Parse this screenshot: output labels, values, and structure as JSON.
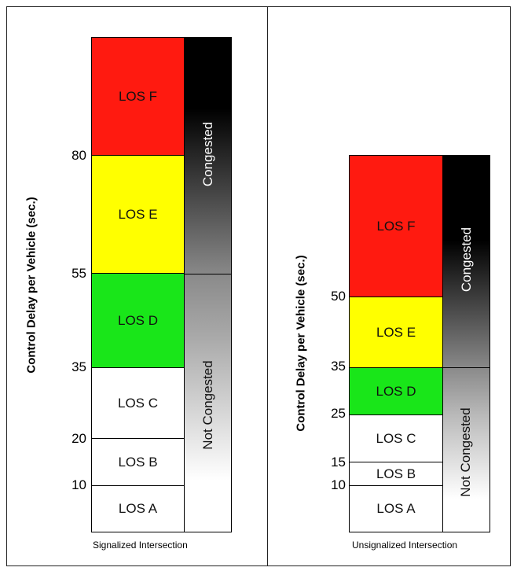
{
  "colors": {
    "los_f": "#ff1a10",
    "los_e": "#ffff00",
    "los_d": "#19e619",
    "los_other": "#ffffff"
  },
  "signalized": {
    "caption": "Signalized Intersection",
    "ylabel": "Control Delay per Vehicle (sec.)",
    "ticks": [
      "80",
      "55",
      "35",
      "20",
      "10"
    ],
    "bands": {
      "f": "LOS F",
      "e": "LOS E",
      "d": "LOS D",
      "c": "LOS C",
      "b": "LOS B",
      "a": "LOS A"
    },
    "congested": "Congested",
    "not_congested": "Not Congested"
  },
  "unsignalized": {
    "caption": "Unsignalized Intersection",
    "ylabel": "Control Delay per Vehicle (sec.)",
    "ticks": [
      "50",
      "35",
      "25",
      "15",
      "10"
    ],
    "bands": {
      "f": "LOS F",
      "e": "LOS E",
      "d": "LOS D",
      "c": "LOS C",
      "b": "LOS B",
      "a": "LOS A"
    },
    "congested": "Congested",
    "not_congested": "Not Congested"
  }
}
